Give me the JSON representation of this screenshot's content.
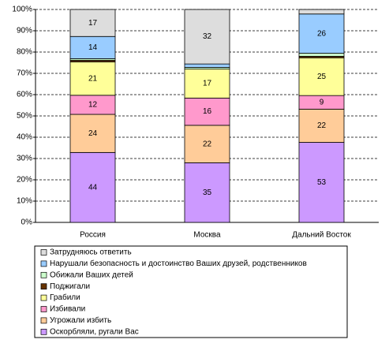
{
  "chart_data": {
    "type": "bar",
    "stacked": "percent",
    "categories": [
      "Россия",
      "Москва",
      "Дальний Восток"
    ],
    "series": [
      {
        "name": "Оскорбляли, ругали Вас",
        "color": "#cc99ff",
        "values": [
          44,
          35,
          53
        ]
      },
      {
        "name": "Угрожали избить",
        "color": "#ffcc99",
        "values": [
          24,
          22,
          22
        ]
      },
      {
        "name": "Избивали",
        "color": "#ff99cc",
        "values": [
          12,
          16,
          9
        ]
      },
      {
        "name": "Грабили",
        "color": "#ffff99",
        "values": [
          21,
          17,
          25
        ]
      },
      {
        "name": "Поджигали",
        "color": "#663300",
        "values": [
          1,
          0,
          1
        ]
      },
      {
        "name": "Обижали Ваших детей",
        "color": "#ccffcc",
        "values": [
          1,
          1,
          2
        ]
      },
      {
        "name": "Нарушали безопасность и достоинство Ваших друзей, родственников",
        "color": "#99ccff",
        "values": [
          14,
          2,
          26
        ]
      },
      {
        "name": "Затрудняюсь ответить",
        "color": "#dddddd",
        "values": [
          17,
          32,
          3
        ]
      }
    ],
    "ylim": [
      0,
      100
    ],
    "yticks": [
      {
        "value": 0,
        "label": "0%"
      },
      {
        "value": 10,
        "label": "10%"
      },
      {
        "value": 20,
        "label": "20%"
      },
      {
        "value": 30,
        "label": "30%"
      },
      {
        "value": 40,
        "label": "40%"
      },
      {
        "value": 50,
        "label": "50%"
      },
      {
        "value": 60,
        "label": "60%"
      },
      {
        "value": 70,
        "label": "70%"
      },
      {
        "value": 80,
        "label": "80%"
      },
      {
        "value": 90,
        "label": "90%"
      },
      {
        "value": 100,
        "label": "100%"
      }
    ],
    "grid": true,
    "legend": "bottom"
  }
}
